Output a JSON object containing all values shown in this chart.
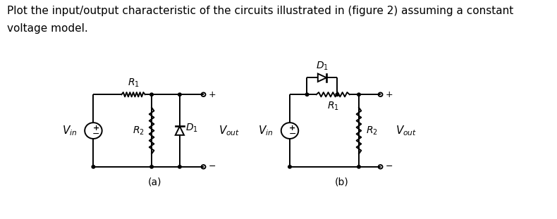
{
  "background_color": "#ffffff",
  "text_color": "#000000",
  "title_line1": "Plot the input/output characteristic of the circuits illustrated in (figure 2) assuming a constant",
  "title_line2": "voltage model.",
  "title_fontsize": 11,
  "label_fontsize": 10,
  "fig_width": 7.9,
  "fig_height": 3.11,
  "circuit_a_label": "(a)",
  "circuit_b_label": "(b)"
}
